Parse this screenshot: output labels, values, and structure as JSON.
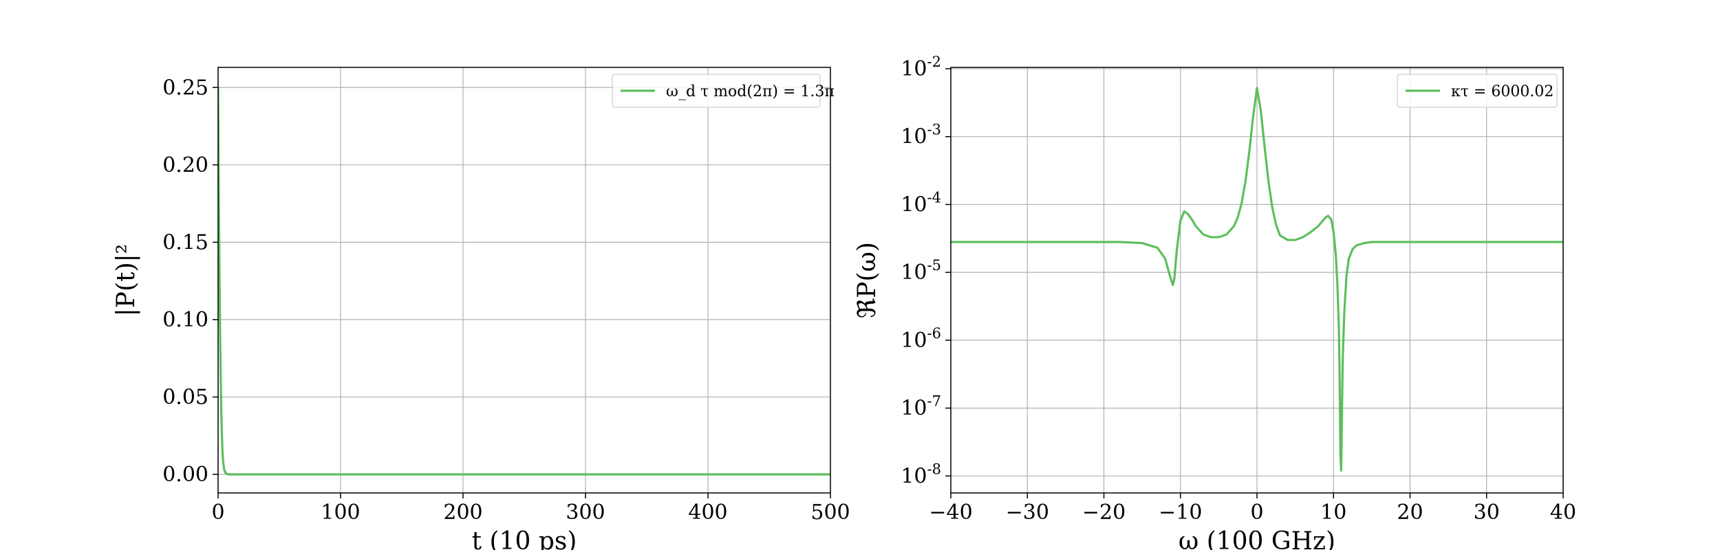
{
  "chart_data": [
    {
      "type": "line",
      "xlabel": "t (10 ps)",
      "ylabel": "|P(t)|²",
      "xlim": [
        0,
        500
      ],
      "ylim": [
        -0.012,
        0.263
      ],
      "xticks": [
        0,
        100,
        200,
        300,
        400,
        500
      ],
      "xtick_labels": [
        "0",
        "100",
        "200",
        "300",
        "400",
        "500"
      ],
      "yticks": [
        0.0,
        0.05,
        0.1,
        0.15,
        0.2,
        0.25
      ],
      "ytick_labels": [
        "0.00",
        "0.05",
        "0.10",
        "0.15",
        "0.20",
        "0.25"
      ],
      "grid": true,
      "legend_position": "top-right",
      "series": [
        {
          "name": "ω_d τ mod(2π) = 1.3π",
          "color": "#5cbf5c",
          "x": [
            0,
            0.5,
            1,
            1.5,
            2,
            2.5,
            3,
            3.5,
            4,
            5,
            6,
            8,
            10,
            20,
            50,
            100,
            200,
            300,
            400,
            500
          ],
          "y": [
            0.25,
            0.19,
            0.14,
            0.1,
            0.07,
            0.045,
            0.028,
            0.016,
            0.009,
            0.003,
            0.001,
            0.0,
            0.0,
            0.0,
            0.0,
            0.0,
            0.0,
            0.0,
            0.0,
            0.0
          ]
        }
      ]
    },
    {
      "type": "line",
      "xlabel": "ω (100 GHz)",
      "ylabel": "ℜP(ω)",
      "xlim": [
        -40,
        40
      ],
      "yscale": "log",
      "ylim_exp": [
        -8.25,
        -1.98
      ],
      "xticks": [
        -40,
        -30,
        -20,
        -10,
        0,
        10,
        20,
        30,
        40
      ],
      "xtick_labels": [
        "−40",
        "−30",
        "−20",
        "−10",
        "0",
        "10",
        "20",
        "30",
        "40"
      ],
      "yticks_exp": [
        -8,
        -7,
        -6,
        -5,
        -4,
        -3,
        -2
      ],
      "ytick_labels": [
        "10",
        "10",
        "10",
        "10",
        "10",
        "10",
        "10"
      ],
      "ytick_exponents": [
        "-8",
        "-7",
        "-6",
        "-5",
        "-4",
        "-3",
        "-2"
      ],
      "grid": true,
      "legend_position": "top-right",
      "series": [
        {
          "name": "κτ = 6000.02",
          "color": "#5cbf5c",
          "x": [
            -40,
            -30,
            -20,
            -18,
            -15,
            -13,
            -12,
            -11.5,
            -11,
            -10.8,
            -10.5,
            -10,
            -9.5,
            -9,
            -8.5,
            -8,
            -7,
            -6,
            -5,
            -4,
            -3,
            -2.5,
            -2,
            -1.5,
            -1,
            -0.5,
            0,
            0.5,
            1,
            1.5,
            2,
            2.5,
            3,
            4,
            5,
            6,
            7,
            8,
            8.5,
            9,
            9.3,
            9.7,
            10,
            10.3,
            10.5,
            10.7,
            10.8,
            10.9,
            11.0,
            11.1,
            11.2,
            11.4,
            11.7,
            12,
            12.5,
            13,
            14,
            15,
            17,
            20,
            25,
            30,
            40
          ],
          "y": [
            2.8e-05,
            2.8e-05,
            2.8e-05,
            2.8e-05,
            2.7e-05,
            2.3e-05,
            1.6e-05,
            1e-05,
            6.5e-06,
            8e-06,
            2e-05,
            5.8e-05,
            7.9e-05,
            7.2e-05,
            6e-05,
            4.8e-05,
            3.6e-05,
            3.3e-05,
            3.3e-05,
            3.6e-05,
            4.8e-05,
            6.5e-05,
            0.000105,
            0.00022,
            0.0006,
            0.002,
            0.0052,
            0.0024,
            0.0007,
            0.00022,
            9e-05,
            5e-05,
            3.5e-05,
            3e-05,
            3e-05,
            3.3e-05,
            3.9e-05,
            4.8e-05,
            5.6e-05,
            6.5e-05,
            6.8e-05,
            6e-05,
            4e-05,
            1.8e-05,
            7e-06,
            1.5e-06,
            3e-07,
            2e-08,
            1.2e-08,
            8e-08,
            5e-07,
            2.5e-06,
            9e-06,
            1.6e-05,
            2.2e-05,
            2.5e-05,
            2.7e-05,
            2.8e-05,
            2.8e-05,
            2.8e-05,
            2.8e-05,
            2.8e-05,
            2.8e-05
          ]
        }
      ]
    }
  ]
}
